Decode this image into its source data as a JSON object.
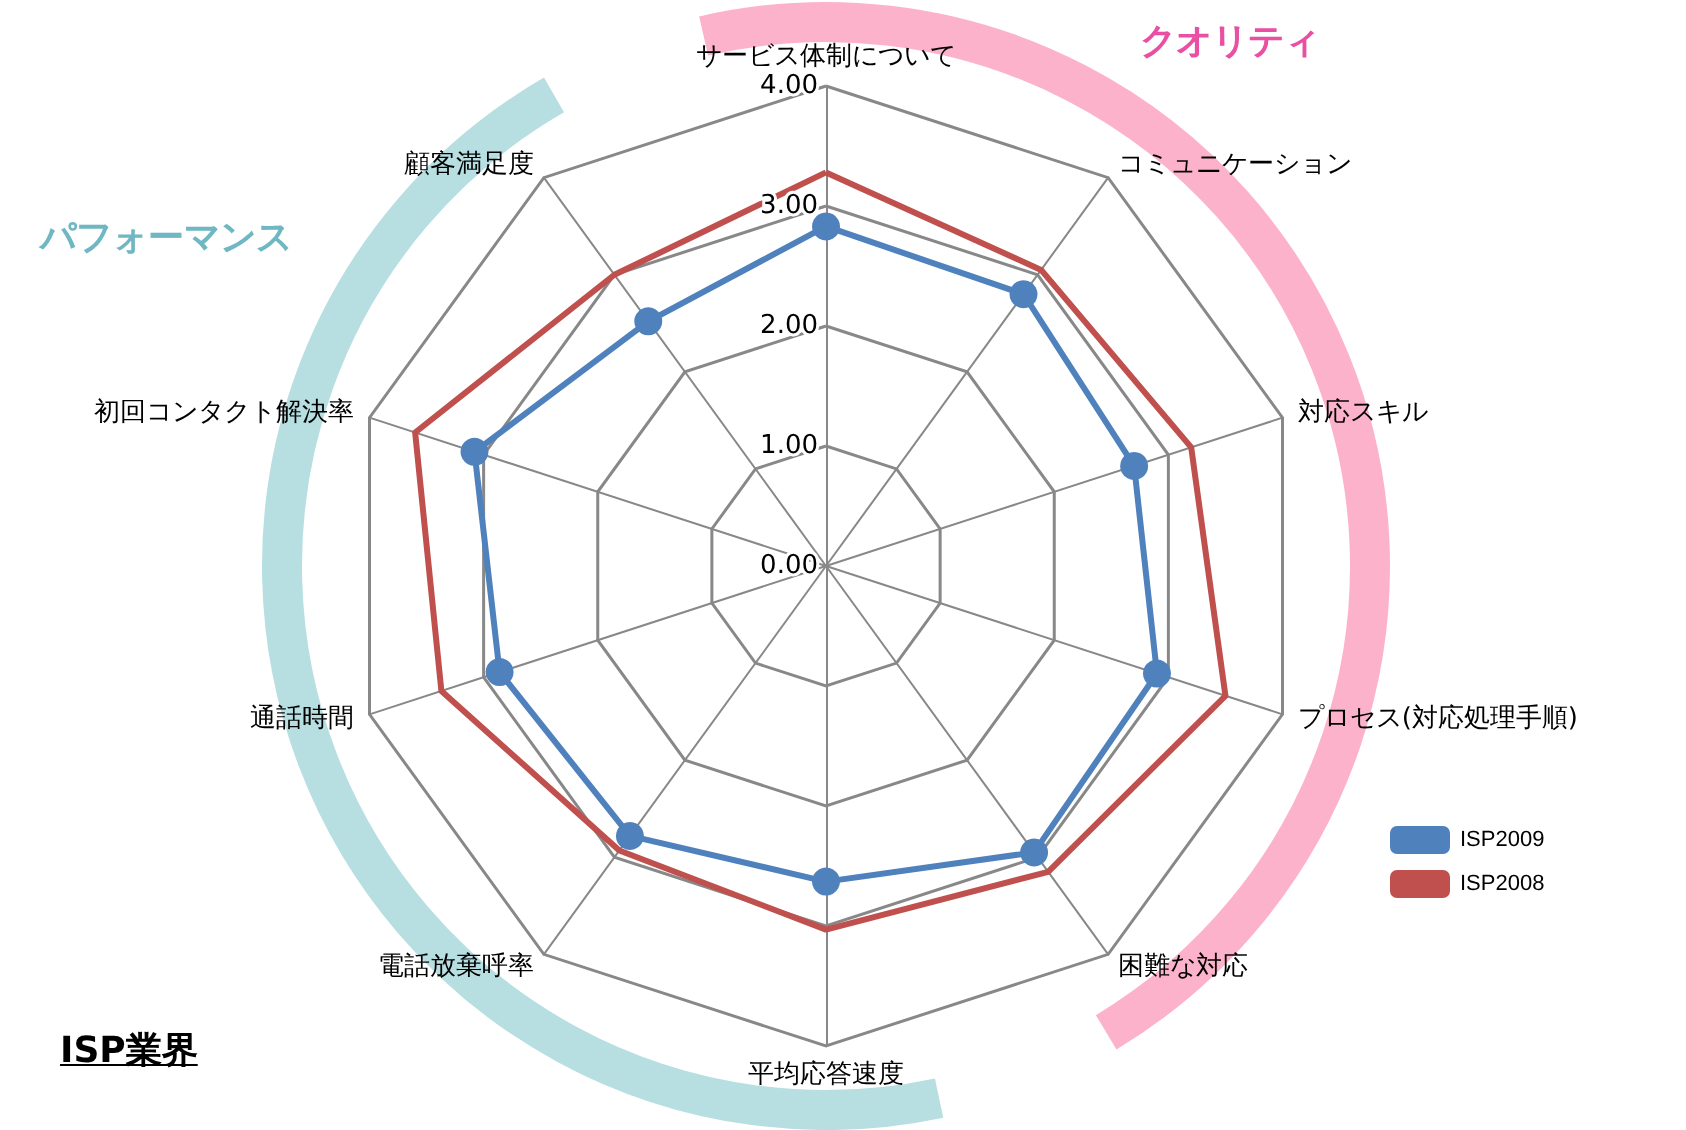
{
  "chart_data": {
    "type": "radar",
    "title": "ISP業界",
    "annotations": [
      "パフォーマンス",
      "クオリティ"
    ],
    "categories": [
      "サービス体制について",
      "コミュニケーション",
      "対応スキル",
      "プロセス(対応処理手順)",
      "困難な対応",
      "平均応答速度",
      "電話放棄呼率",
      "通話時間",
      "初回コンタクト解決率",
      "顧客満足度"
    ],
    "series": [
      {
        "name": "ISP2009",
        "color": "#4f81bd",
        "marker": "circle",
        "values": [
          2.83,
          2.8,
          2.7,
          2.9,
          2.95,
          2.63,
          2.78,
          2.86,
          3.08,
          2.52
        ]
      },
      {
        "name": "ISP2008",
        "color": "#c0504d",
        "marker": "none",
        "values": [
          3.28,
          3.05,
          3.2,
          3.5,
          3.15,
          3.03,
          2.93,
          3.37,
          3.6,
          3.0
        ]
      }
    ],
    "ylim": [
      0,
      4
    ],
    "yticks": [
      {
        "value": 0,
        "label": "0.00"
      },
      {
        "value": 1,
        "label": "1.00"
      },
      {
        "value": 2,
        "label": "2.00"
      },
      {
        "value": 3,
        "label": "3.00"
      },
      {
        "value": 4,
        "label": "4.00"
      }
    ],
    "legend": "right",
    "grid": true
  }
}
